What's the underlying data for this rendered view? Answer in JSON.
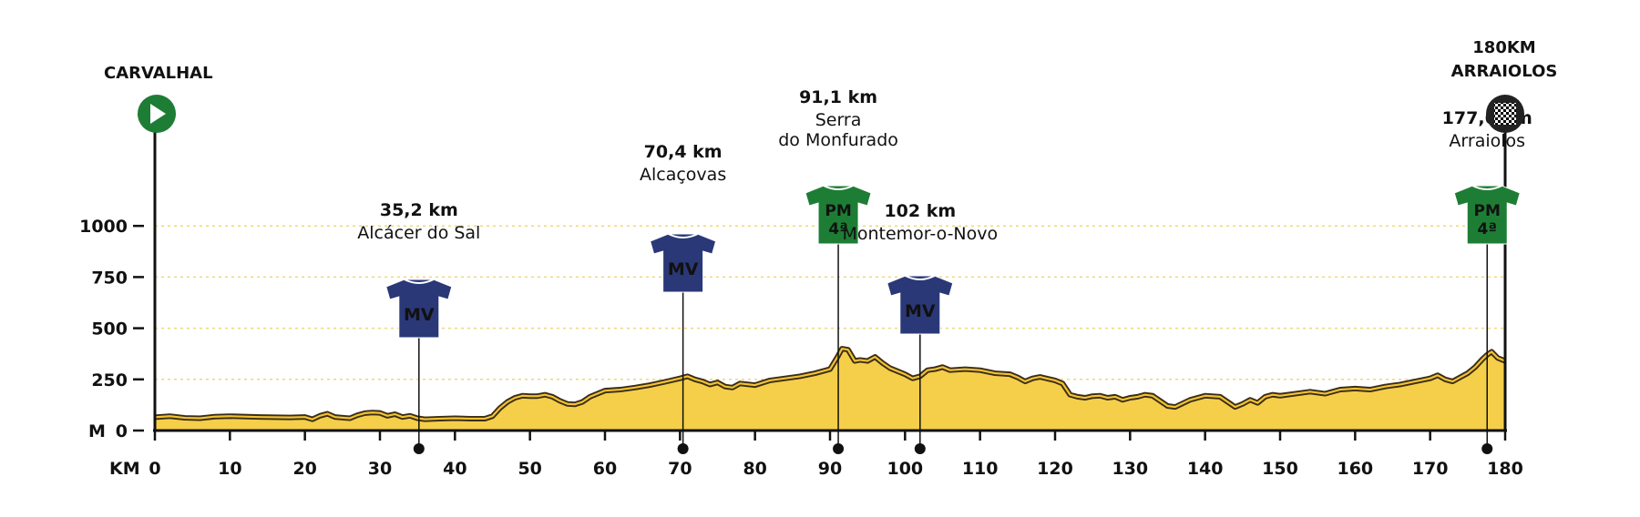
{
  "chart_data": {
    "type": "area",
    "xlabel": "KM",
    "ylabel": "M",
    "xlim": [
      0,
      180
    ],
    "ylim": [
      0,
      1000
    ],
    "x_ticks": [
      0,
      10,
      20,
      30,
      40,
      50,
      60,
      70,
      80,
      90,
      100,
      110,
      120,
      130,
      140,
      150,
      160,
      170,
      180
    ],
    "y_ticks": [
      0,
      250,
      500,
      750,
      1000
    ],
    "grid": "horizontal dotted",
    "start": {
      "name": "CARVALHAL",
      "km": 0
    },
    "finish": {
      "distance": "180KM",
      "name": "ARRAIOLOS",
      "km": 180
    },
    "profile": [
      [
        0,
        65
      ],
      [
        2,
        70
      ],
      [
        4,
        62
      ],
      [
        6,
        60
      ],
      [
        8,
        68
      ],
      [
        10,
        70
      ],
      [
        14,
        66
      ],
      [
        18,
        64
      ],
      [
        20,
        66
      ],
      [
        21,
        55
      ],
      [
        22,
        72
      ],
      [
        23,
        82
      ],
      [
        24,
        66
      ],
      [
        26,
        60
      ],
      [
        27,
        75
      ],
      [
        28,
        85
      ],
      [
        29,
        88
      ],
      [
        30,
        86
      ],
      [
        31,
        72
      ],
      [
        32,
        80
      ],
      [
        33,
        66
      ],
      [
        34,
        72
      ],
      [
        35,
        60
      ],
      [
        36,
        55
      ],
      [
        38,
        58
      ],
      [
        40,
        60
      ],
      [
        42,
        58
      ],
      [
        44,
        58
      ],
      [
        45,
        70
      ],
      [
        46,
        110
      ],
      [
        47,
        140
      ],
      [
        48,
        160
      ],
      [
        49,
        170
      ],
      [
        50,
        168
      ],
      [
        51,
        168
      ],
      [
        52,
        175
      ],
      [
        53,
        165
      ],
      [
        54,
        145
      ],
      [
        55,
        130
      ],
      [
        56,
        128
      ],
      [
        57,
        140
      ],
      [
        58,
        165
      ],
      [
        59,
        180
      ],
      [
        60,
        195
      ],
      [
        62,
        200
      ],
      [
        64,
        210
      ],
      [
        66,
        222
      ],
      [
        68,
        238
      ],
      [
        70,
        255
      ],
      [
        71,
        265
      ],
      [
        72,
        250
      ],
      [
        73,
        240
      ],
      [
        74,
        225
      ],
      [
        75,
        235
      ],
      [
        76,
        215
      ],
      [
        77,
        210
      ],
      [
        78,
        230
      ],
      [
        80,
        222
      ],
      [
        82,
        245
      ],
      [
        84,
        255
      ],
      [
        86,
        265
      ],
      [
        88,
        280
      ],
      [
        89,
        290
      ],
      [
        90,
        300
      ],
      [
        91,
        360
      ],
      [
        91.6,
        400
      ],
      [
        92.4,
        395
      ],
      [
        93.3,
        340
      ],
      [
        94,
        345
      ],
      [
        95,
        340
      ],
      [
        96,
        360
      ],
      [
        97,
        330
      ],
      [
        98,
        305
      ],
      [
        100,
        275
      ],
      [
        101,
        255
      ],
      [
        102,
        265
      ],
      [
        103,
        295
      ],
      [
        104,
        300
      ],
      [
        105,
        310
      ],
      [
        106,
        295
      ],
      [
        108,
        300
      ],
      [
        110,
        295
      ],
      [
        112,
        280
      ],
      [
        114,
        275
      ],
      [
        115,
        260
      ],
      [
        116,
        240
      ],
      [
        117,
        255
      ],
      [
        118,
        262
      ],
      [
        120,
        245
      ],
      [
        121,
        230
      ],
      [
        122,
        175
      ],
      [
        123,
        165
      ],
      [
        124,
        160
      ],
      [
        125,
        168
      ],
      [
        126,
        170
      ],
      [
        127,
        160
      ],
      [
        128,
        165
      ],
      [
        129,
        150
      ],
      [
        130,
        160
      ],
      [
        131,
        165
      ],
      [
        132,
        175
      ],
      [
        133,
        170
      ],
      [
        134,
        145
      ],
      [
        135,
        120
      ],
      [
        136,
        115
      ],
      [
        138,
        150
      ],
      [
        140,
        170
      ],
      [
        142,
        165
      ],
      [
        143,
        140
      ],
      [
        144,
        115
      ],
      [
        145,
        130
      ],
      [
        146,
        150
      ],
      [
        147,
        135
      ],
      [
        148,
        165
      ],
      [
        149,
        175
      ],
      [
        150,
        170
      ],
      [
        152,
        180
      ],
      [
        154,
        190
      ],
      [
        156,
        180
      ],
      [
        158,
        200
      ],
      [
        160,
        205
      ],
      [
        162,
        200
      ],
      [
        164,
        215
      ],
      [
        166,
        225
      ],
      [
        168,
        240
      ],
      [
        170,
        255
      ],
      [
        171,
        270
      ],
      [
        172,
        250
      ],
      [
        173,
        240
      ],
      [
        174,
        260
      ],
      [
        175,
        280
      ],
      [
        176,
        310
      ],
      [
        177,
        350
      ],
      [
        177.6,
        370
      ],
      [
        178.2,
        385
      ],
      [
        179,
        355
      ],
      [
        180,
        340
      ]
    ],
    "markers": [
      {
        "km": 35.2,
        "km_label": "35,2 km",
        "name_lines": [
          "Alcácer do Sal"
        ],
        "type": "MV",
        "classification": "",
        "color": "#2a3878"
      },
      {
        "km": 70.4,
        "km_label": "70,4 km",
        "name_lines": [
          "Alcaçovas"
        ],
        "type": "MV",
        "classification": "",
        "color": "#2a3878"
      },
      {
        "km": 91.1,
        "km_label": "91,1 km",
        "name_lines": [
          "Serra",
          "do Monfurado"
        ],
        "type": "PM",
        "classification": "4ª",
        "color": "#1e7d35"
      },
      {
        "km": 102,
        "km_label": "102 km",
        "name_lines": [
          "Montemor-o-Novo"
        ],
        "type": "MV",
        "classification": "",
        "color": "#2a3878"
      },
      {
        "km": 177.6,
        "km_label": "177,6 km",
        "name_lines": [
          "Arraiolos"
        ],
        "type": "PM",
        "classification": "4ª",
        "color": "#1e7d35"
      }
    ],
    "colors": {
      "fill": "#f5cf4a",
      "line": "#3b2d17",
      "grid": "#f0d77a",
      "start": "#1e7d35",
      "finish": "#222222"
    }
  }
}
